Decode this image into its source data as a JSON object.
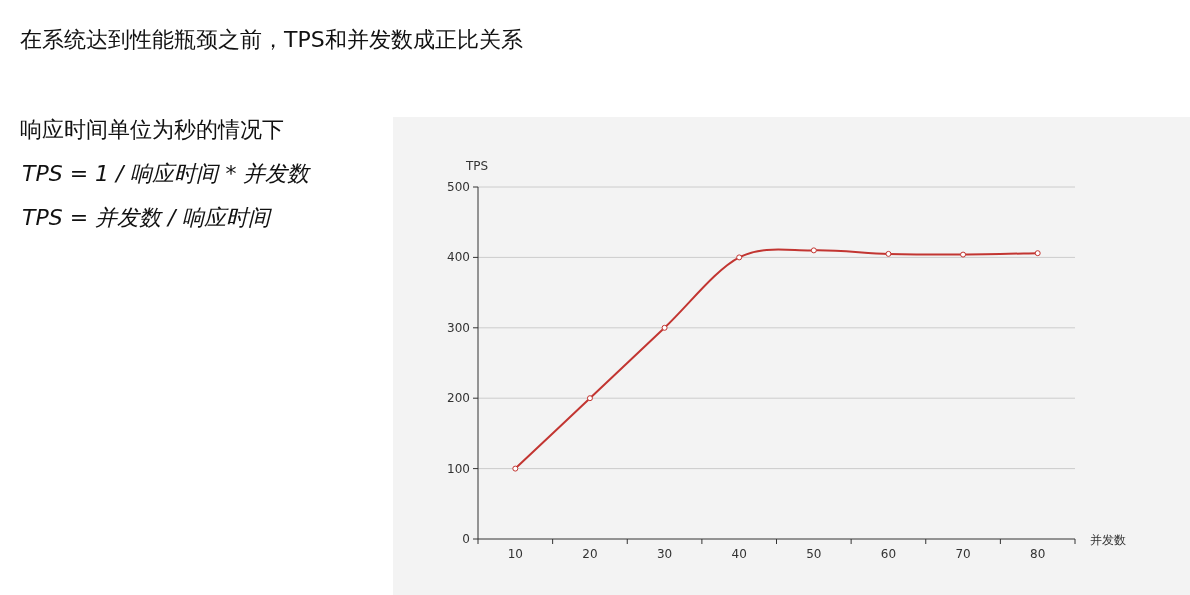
{
  "chart_data": {
    "type": "line",
    "title": "在系统达到性能瓶颈之前，TPS和并发数成正比关系",
    "annotations": [
      "响应时间单位为秒的情况下",
      "TPS = 1 / 响应时间 * 并发数",
      "TPS = 并发数 / 响应时间"
    ],
    "xlabel": "并发数",
    "ylabel": "TPS",
    "categories": [
      "10",
      "20",
      "30",
      "40",
      "50",
      "60",
      "70",
      "80"
    ],
    "series": [
      {
        "color": "#c23531",
        "values": [
          100,
          200,
          300,
          400,
          410,
          405,
          404,
          406
        ]
      }
    ],
    "ylim": [
      0,
      500
    ],
    "yticks": [
      0,
      100,
      200,
      300,
      400,
      500
    ],
    "grid": "y",
    "marker": "circle"
  }
}
